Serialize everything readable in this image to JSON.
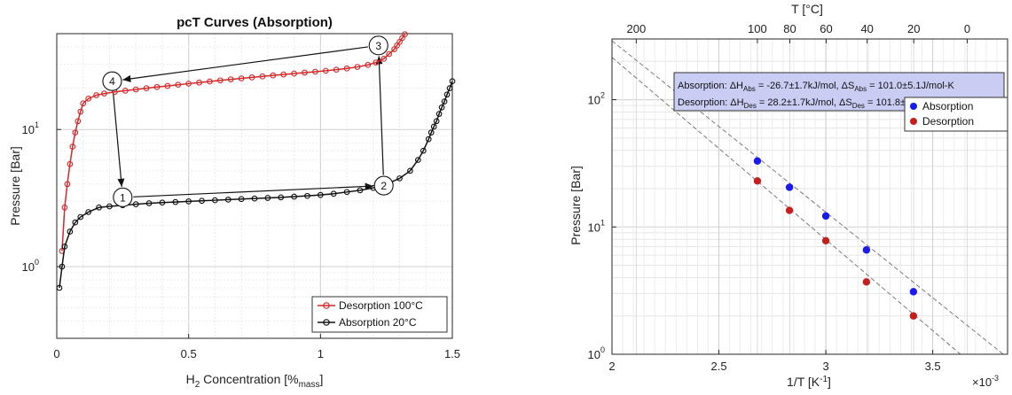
{
  "chart_data": [
    {
      "type": "line",
      "title": "pcT Curves (Absorption)",
      "xlabel_main": "H",
      "xlabel_sub": "2",
      "xlabel_rest": " Concentration [%",
      "xlabel_unit_sub": "mass",
      "xlabel_close": "]",
      "ylabel": "Pressure [Bar]",
      "xlim": [
        0,
        1.5
      ],
      "ylim": [
        0.3,
        50
      ],
      "yscale": "log",
      "grid": true,
      "x_ticks": [
        0,
        0.5,
        1,
        1.5
      ],
      "x_tick_labels": [
        "0",
        "0.5",
        "1",
        "1.5"
      ],
      "y_ticks": [
        1,
        10
      ],
      "y_tick_base": "10",
      "y_tick_exps": [
        "0",
        "1"
      ],
      "legend_placement": "bottom-right",
      "series": [
        {
          "name": "Desorption 100°C",
          "color": "#d62728",
          "marker": "open-circle",
          "x": [
            0.02,
            0.03,
            0.04,
            0.05,
            0.06,
            0.07,
            0.08,
            0.09,
            0.1,
            0.12,
            0.15,
            0.18,
            0.22,
            0.26,
            0.3,
            0.34,
            0.38,
            0.42,
            0.46,
            0.5,
            0.54,
            0.58,
            0.62,
            0.66,
            0.7,
            0.74,
            0.78,
            0.82,
            0.86,
            0.9,
            0.94,
            0.98,
            1.02,
            1.06,
            1.1,
            1.14,
            1.18,
            1.21,
            1.24,
            1.26,
            1.28,
            1.29,
            1.3,
            1.31,
            1.32
          ],
          "y": [
            1.3,
            2.7,
            4.0,
            5.6,
            7.5,
            9.5,
            11.5,
            13.5,
            15.5,
            16.8,
            17.8,
            18.3,
            18.8,
            19.2,
            19.6,
            20.0,
            20.4,
            20.8,
            21.2,
            21.6,
            22.0,
            22.4,
            22.8,
            23.2,
            23.6,
            24.0,
            24.4,
            24.8,
            25.2,
            25.6,
            26.0,
            26.4,
            26.8,
            27.3,
            27.9,
            28.6,
            29.6,
            30.8,
            32.8,
            35.5,
            38.5,
            41.0,
            43.5,
            46.5,
            49.5
          ]
        },
        {
          "name": "Absorption 20°C",
          "color": "#111111",
          "marker": "open-circle",
          "x": [
            0.01,
            0.02,
            0.03,
            0.05,
            0.07,
            0.09,
            0.12,
            0.16,
            0.2,
            0.25,
            0.3,
            0.35,
            0.4,
            0.45,
            0.5,
            0.55,
            0.6,
            0.65,
            0.7,
            0.75,
            0.8,
            0.85,
            0.9,
            0.95,
            1.0,
            1.05,
            1.1,
            1.15,
            1.2,
            1.25,
            1.3,
            1.34,
            1.37,
            1.39,
            1.41,
            1.42,
            1.43,
            1.44,
            1.45,
            1.46,
            1.47,
            1.48,
            1.49,
            1.5
          ],
          "y": [
            0.7,
            1.0,
            1.4,
            1.8,
            2.1,
            2.3,
            2.5,
            2.7,
            2.75,
            2.8,
            2.85,
            2.9,
            2.93,
            2.96,
            2.99,
            3.02,
            3.05,
            3.08,
            3.11,
            3.14,
            3.17,
            3.2,
            3.24,
            3.28,
            3.33,
            3.4,
            3.5,
            3.6,
            3.75,
            4.0,
            4.4,
            5.0,
            6.0,
            7.0,
            8.5,
            9.5,
            10.5,
            11.5,
            13.0,
            14.5,
            16.0,
            18.0,
            20.0,
            22.5
          ]
        }
      ],
      "annotations": [
        {
          "label": "1",
          "x": 0.25,
          "y": 3.2
        },
        {
          "label": "2",
          "x": 1.24,
          "y": 3.9
        },
        {
          "label": "3",
          "x": 1.22,
          "y": 41
        },
        {
          "label": "4",
          "x": 0.21,
          "y": 22.5
        }
      ],
      "arrows": [
        {
          "from": [
            0.25,
            3.2
          ],
          "to": [
            1.24,
            3.9
          ]
        },
        {
          "from": [
            1.24,
            3.9
          ],
          "to": [
            1.22,
            41
          ]
        },
        {
          "from": [
            1.22,
            41
          ],
          "to": [
            0.21,
            22.5
          ]
        },
        {
          "from": [
            0.21,
            22.5
          ],
          "to": [
            0.25,
            3.2
          ]
        }
      ]
    },
    {
      "type": "scatter",
      "xlabel": "1/T [K",
      "xlabel_sup": "-1",
      "xlabel_close": "]",
      "x_scale_label_base": "×10",
      "x_scale_label_exp": "-3",
      "top_xlabel": "T [°C]",
      "ylabel": "Pressure [Bar]",
      "xlim": [
        2.0,
        3.85
      ],
      "ylim": [
        1,
        300
      ],
      "yscale": "log",
      "grid": true,
      "x_ticks": [
        2,
        2.5,
        3,
        3.5
      ],
      "x_tick_labels": [
        "2",
        "2.5",
        "3",
        "3.5"
      ],
      "top_ticks_celsius": [
        200,
        100,
        80,
        60,
        40,
        20,
        0
      ],
      "top_tick_labels": [
        "200",
        "100",
        "80",
        "60",
        "40",
        "20",
        "0"
      ],
      "y_ticks": [
        1,
        10,
        100
      ],
      "y_tick_base": "10",
      "y_tick_exps": [
        "0",
        "1",
        "2"
      ],
      "legend_placement": "top-right",
      "series": [
        {
          "name": "Absorption",
          "color": "#1a1aee",
          "x": [
            2.68,
            2.83,
            3.0,
            3.19,
            3.41
          ],
          "y": [
            33,
            20.5,
            12.2,
            6.6,
            3.1
          ]
        },
        {
          "name": "Desorption",
          "color": "#c41e1e",
          "x": [
            2.68,
            2.83,
            3.0,
            3.19,
            3.41
          ],
          "y": [
            23,
            13.5,
            7.8,
            3.7,
            2.0
          ]
        }
      ],
      "fit_lines": [
        {
          "x1": 2.0,
          "y1": 290,
          "x2": 3.83,
          "y2": 1.0
        },
        {
          "x1": 2.0,
          "y1": 215,
          "x2": 3.63,
          "y2": 1.0
        }
      ],
      "info_box": {
        "line1": {
          "t1": "Absorption: ΔH",
          "s1": "Abs",
          "t2": " = -26.7±1.7kJ/mol, ΔS",
          "s2": "Abs",
          "t3": " = 101.0±5.1J/mol-K"
        },
        "line2": {
          "t1": "Desorption: ΔH",
          "s1": "Des",
          "t2": " = 28.2±1.7kJ/mol, ΔS",
          "s2": "Des",
          "t3": " = 101.8±5.1J/mol-K"
        },
        "fill": "#c9cdf3"
      }
    }
  ]
}
